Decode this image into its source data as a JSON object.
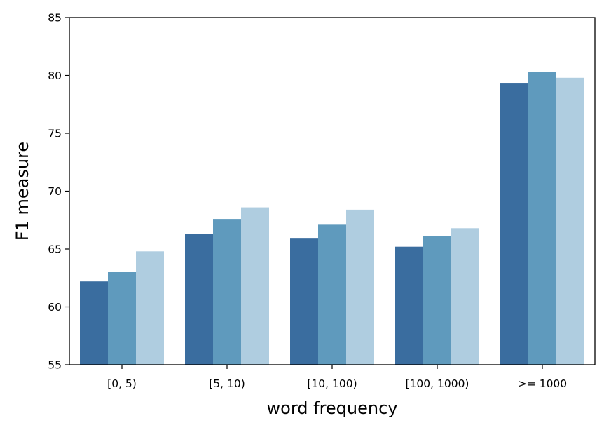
{
  "chart_data": {
    "type": "bar",
    "title": "",
    "xlabel": "word frequency",
    "ylabel": "F1 measure",
    "categories": [
      "[0, 5)",
      "[5, 10)",
      "[10, 100)",
      "[100, 1000)",
      ">= 1000"
    ],
    "series": [
      {
        "values": [
          62.2,
          66.3,
          65.9,
          65.2,
          79.3
        ],
        "color": "#3a6d9f"
      },
      {
        "values": [
          63.0,
          67.6,
          67.1,
          66.1,
          80.3
        ],
        "color": "#5f9abd"
      },
      {
        "values": [
          64.8,
          68.6,
          68.4,
          66.8,
          79.8
        ],
        "color": "#afcde0"
      }
    ],
    "ylim": [
      55,
      85
    ],
    "yticks": [
      55,
      60,
      65,
      70,
      75,
      80,
      85
    ],
    "grid": false,
    "legend": "none"
  }
}
